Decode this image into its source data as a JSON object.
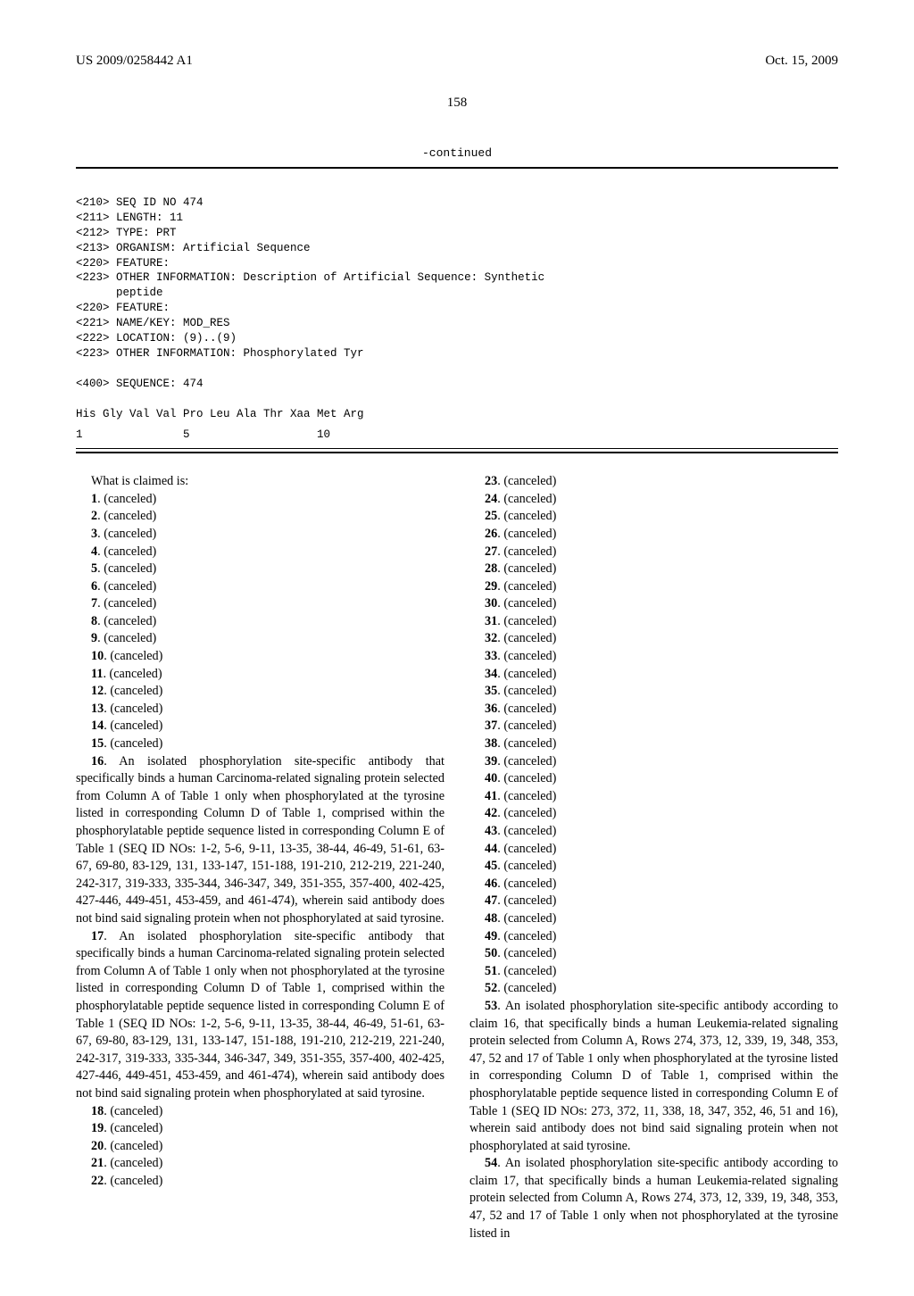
{
  "header": {
    "left": "US 2009/0258442 A1",
    "right": "Oct. 15, 2009"
  },
  "page_number": "158",
  "continued_label": "-continued",
  "sequence": {
    "header_lines": "<210> SEQ ID NO 474\n<211> LENGTH: 11\n<212> TYPE: PRT\n<213> ORGANISM: Artificial Sequence\n<220> FEATURE:\n<223> OTHER INFORMATION: Description of Artificial Sequence: Synthetic\n      peptide\n<220> FEATURE:\n<221> NAME/KEY: MOD_RES\n<222> LOCATION: (9)..(9)\n<223> OTHER INFORMATION: Phosphorylated Tyr\n\n<400> SEQUENCE: 474",
    "residue_line": "His Gly Val Val Pro Leu Ala Thr Xaa Met Arg",
    "index_line": "1               5                   10"
  },
  "claims": {
    "lead": "What is claimed is:",
    "left_canceled_1": [
      "1",
      "2",
      "3",
      "4",
      "5",
      "6",
      "7",
      "8",
      "9",
      "10",
      "11",
      "12",
      "13",
      "14",
      "15"
    ],
    "claim16": "16. An isolated phosphorylation site-specific antibody that specifically binds a human Carcinoma-related signaling protein selected from Column A of Table 1 only when phosphorylated at the tyrosine listed in corresponding Column D of Table 1, comprised within the phosphorylatable peptide sequence listed in corresponding Column E of Table 1 (SEQ ID NOs: 1-2, 5-6, 9-11, 13-35, 38-44, 46-49, 51-61, 63-67, 69-80, 83-129, 131, 133-147, 151-188, 191-210, 212-219, 221-240, 242-317, 319-333, 335-344, 346-347, 349, 351-355, 357-400, 402-425, 427-446, 449-451, 453-459, and 461-474), wherein said antibody does not bind said signaling protein when not phosphorylated at said tyrosine.",
    "claim17": "17. An isolated phosphorylation site-specific antibody that specifically binds a human Carcinoma-related signaling protein selected from Column A of Table 1 only when not phosphorylated at the tyrosine listed in corresponding Column D of Table 1, comprised within the phosphorylatable peptide sequence listed in corresponding Column E of Table 1 (SEQ ID NOs: 1-2, 5-6, 9-11, 13-35, 38-44, 46-49, 51-61, 63-67, 69-80, 83-129, 131, 133-147, 151-188, 191-210, 212-219, 221-240, 242-317, 319-333, 335-344, 346-347, 349, 351-355, 357-400, 402-425, 427-446, 449-451, 453-459, and 461-474), wherein said antibody does not bind said signaling protein when phosphorylated at said tyrosine.",
    "left_canceled_2": [
      "18",
      "19",
      "20",
      "21",
      "22"
    ],
    "right_canceled": [
      "23",
      "24",
      "25",
      "26",
      "27",
      "28",
      "29",
      "30",
      "31",
      "32",
      "33",
      "34",
      "35",
      "36",
      "37",
      "38",
      "39",
      "40",
      "41",
      "42",
      "43",
      "44",
      "45",
      "46",
      "47",
      "48",
      "49",
      "50",
      "51",
      "52"
    ],
    "claim53": "53. An isolated phosphorylation site-specific antibody according to claim 16, that specifically binds a human Leukemia-related signaling protein selected from Column A, Rows 274, 373, 12, 339, 19, 348, 353, 47, 52 and 17 of Table 1 only when phosphorylated at the tyrosine listed in corresponding Column D of Table 1, comprised within the phosphorylatable peptide sequence listed in corresponding Column E of Table 1 (SEQ ID NOs: 273, 372, 11, 338, 18, 347, 352, 46, 51 and 16), wherein said antibody does not bind said signaling protein when not phosphorylated at said tyrosine.",
    "claim54": "54. An isolated phosphorylation site-specific antibody according to claim 17, that specifically binds a human Leukemia-related signaling protein selected from Column A, Rows 274, 373, 12, 339, 19, 348, 353, 47, 52 and 17 of Table 1 only when not phosphorylated at the tyrosine listed in",
    "canceled_suffix": ". (canceled)"
  }
}
